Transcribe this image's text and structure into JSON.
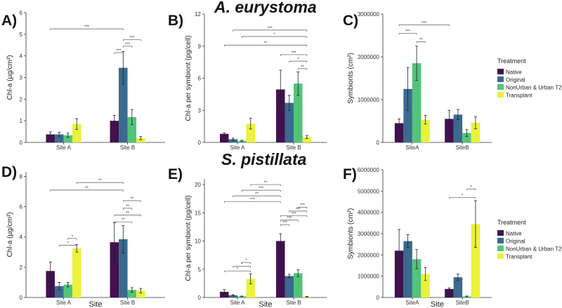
{
  "species_titles": [
    "A. eurystoma",
    "S. pistillata"
  ],
  "legend": {
    "title": "Treatment",
    "entries": [
      {
        "name": "Native",
        "color": "#41114f"
      },
      {
        "name": "Original",
        "color": "#3a6a8e"
      },
      {
        "name": "NonUrban & Urban T2",
        "color": "#52c47a"
      },
      {
        "name": "Transplant",
        "color": "#eaf23a"
      }
    ]
  },
  "chart_data": [
    {
      "id": "A",
      "panel_label": "A)",
      "type": "bar",
      "ylabel": "Chl-a (µg/cm²)",
      "xlabel": "",
      "categories": [
        "Site A",
        "Site B"
      ],
      "ylim": [
        0,
        6
      ],
      "yticks": [
        "0",
        "1",
        "2",
        "3",
        "4",
        "5",
        "6"
      ],
      "ytick_values": [
        0,
        1,
        2,
        3,
        4,
        5,
        6
      ],
      "series": [
        {
          "name": "Native",
          "values": [
            0.37,
            1.0
          ],
          "errors": [
            0.12,
            0.25
          ]
        },
        {
          "name": "Original",
          "values": [
            0.37,
            3.45
          ],
          "errors": [
            0.1,
            0.75
          ]
        },
        {
          "name": "NonUrban & Urban T2",
          "values": [
            0.33,
            1.17
          ],
          "errors": [
            0.1,
            0.35
          ]
        },
        {
          "name": "Transplant",
          "values": [
            0.85,
            0.2
          ],
          "errors": [
            0.25,
            0.07
          ]
        }
      ],
      "significance": [
        {
          "from": [
            0,
            0
          ],
          "to": [
            1,
            1
          ],
          "label": "***",
          "y": 5.25
        },
        {
          "from": [
            1,
            1
          ],
          "to": [
            1,
            3
          ],
          "label": "***",
          "y": 4.75
        },
        {
          "from": [
            1,
            1
          ],
          "to": [
            1,
            2
          ],
          "label": "***",
          "y": 4.45
        },
        {
          "from": [
            1,
            0
          ],
          "to": [
            1,
            1
          ],
          "label": "***",
          "y": 4.15
        }
      ]
    },
    {
      "id": "B",
      "panel_label": "B)",
      "type": "bar",
      "ylabel": "Chl-a per symbiont (pg/cell)",
      "xlabel": "",
      "categories": [
        "Site A",
        "Site B"
      ],
      "ylim": [
        0,
        12
      ],
      "yticks": [
        "0",
        "3",
        "6",
        "9",
        "12"
      ],
      "ytick_values": [
        0,
        3,
        6,
        9,
        12
      ],
      "series": [
        {
          "name": "Native",
          "values": [
            0.8,
            4.95
          ],
          "errors": [
            0.1,
            1.8
          ]
        },
        {
          "name": "Original",
          "values": [
            0.3,
            3.7
          ],
          "errors": [
            0.1,
            0.7
          ]
        },
        {
          "name": "NonUrban & Urban T2",
          "values": [
            0.15,
            5.5
          ],
          "errors": [
            0.05,
            1.1
          ]
        },
        {
          "name": "Transplant",
          "values": [
            1.75,
            0.5
          ],
          "errors": [
            0.5,
            0.15
          ]
        }
      ],
      "significance": [
        {
          "from": [
            0,
            1
          ],
          "to": [
            1,
            3
          ],
          "label": "***",
          "y": 10.5
        },
        {
          "from": [
            0,
            2
          ],
          "to": [
            1,
            3
          ],
          "label": "*",
          "y": 9.9
        },
        {
          "from": [
            0,
            0
          ],
          "to": [
            1,
            3
          ],
          "label": "**",
          "y": 9.1
        },
        {
          "from": [
            1,
            0
          ],
          "to": [
            1,
            3
          ],
          "label": "***",
          "y": 8.2
        },
        {
          "from": [
            1,
            1
          ],
          "to": [
            1,
            3
          ],
          "label": "*",
          "y": 7.6
        },
        {
          "from": [
            1,
            2
          ],
          "to": [
            1,
            3
          ],
          "label": "**",
          "y": 6.9
        }
      ]
    },
    {
      "id": "C",
      "panel_label": "C)",
      "type": "bar",
      "ylabel": "Symbionts (cm²)",
      "xlabel": "",
      "categories": [
        "SiteA",
        "SiteB"
      ],
      "ylim": [
        0,
        3000000
      ],
      "yticks": [
        "0",
        "1000000",
        "2000000",
        "3000000"
      ],
      "ytick_values": [
        0,
        1000000,
        2000000,
        3000000
      ],
      "series": [
        {
          "name": "Native",
          "values": [
            450000,
            550000
          ],
          "errors": [
            100000,
            200000
          ]
        },
        {
          "name": "Original",
          "values": [
            1250000,
            650000
          ],
          "errors": [
            500000,
            120000
          ]
        },
        {
          "name": "NonUrban & Urban T2",
          "values": [
            1850000,
            220000
          ],
          "errors": [
            400000,
            80000
          ]
        },
        {
          "name": "Transplant",
          "values": [
            530000,
            460000
          ],
          "errors": [
            100000,
            140000
          ]
        }
      ],
      "significance": [
        {
          "from": [
            0,
            0
          ],
          "to": [
            1,
            0
          ],
          "label": "***",
          "y": 2750000
        },
        {
          "from": [
            0,
            0
          ],
          "to": [
            0,
            2
          ],
          "label": "***",
          "y": 2550000
        },
        {
          "from": [
            0,
            2
          ],
          "to": [
            0,
            3
          ],
          "label": "**",
          "y": 2350000
        }
      ]
    },
    {
      "id": "D",
      "panel_label": "D)",
      "type": "bar",
      "ylabel": "Chl-a (µg/cm²)",
      "xlabel": "Site",
      "categories": [
        "Site A",
        "Site B"
      ],
      "ylim": [
        0,
        8.3
      ],
      "yticks": [
        "0",
        "2",
        "4",
        "6",
        "8"
      ],
      "ytick_values": [
        0,
        2,
        4,
        6,
        8
      ],
      "series": [
        {
          "name": "Native",
          "values": [
            1.75,
            3.65
          ],
          "errors": [
            0.6,
            1.3
          ]
        },
        {
          "name": "Original",
          "values": [
            0.75,
            3.85
          ],
          "errors": [
            0.25,
            0.9
          ]
        },
        {
          "name": "NonUrban & Urban T2",
          "values": [
            0.85,
            0.5
          ],
          "errors": [
            0.15,
            0.15
          ]
        },
        {
          "name": "Transplant",
          "values": [
            3.25,
            0.45
          ],
          "errors": [
            0.25,
            0.15
          ]
        }
      ],
      "significance": [
        {
          "from": [
            0,
            3
          ],
          "to": [
            1,
            1
          ],
          "label": "**",
          "y": 7.6
        },
        {
          "from": [
            0,
            0
          ],
          "to": [
            1,
            1
          ],
          "label": "**",
          "y": 7.1
        },
        {
          "from": [
            1,
            1
          ],
          "to": [
            1,
            3
          ],
          "label": "**",
          "y": 6.4
        },
        {
          "from": [
            1,
            1
          ],
          "to": [
            1,
            2
          ],
          "label": "**",
          "y": 5.9
        },
        {
          "from": [
            1,
            0
          ],
          "to": [
            1,
            3
          ],
          "label": "**",
          "y": 5.45
        },
        {
          "from": [
            1,
            0
          ],
          "to": [
            1,
            2
          ],
          "label": "**",
          "y": 5.0
        },
        {
          "from": [
            0,
            2
          ],
          "to": [
            0,
            3
          ],
          "label": "*",
          "y": 3.9
        },
        {
          "from": [
            0,
            1
          ],
          "to": [
            0,
            3
          ],
          "label": "*",
          "y": 3.45
        }
      ]
    },
    {
      "id": "E",
      "panel_label": "E)",
      "type": "bar",
      "ylabel": "Chl-a per symbiont (pg/cell)",
      "xlabel": "Site",
      "categories": [
        "Site A",
        "Site B"
      ],
      "ylim": [
        0,
        21
      ],
      "yticks": [
        "0",
        "5",
        "10",
        "15",
        "20"
      ],
      "ytick_values": [
        0,
        5,
        10,
        15,
        20
      ],
      "series": [
        {
          "name": "Native",
          "values": [
            1.0,
            10.0
          ],
          "errors": [
            0.4,
            1.3
          ]
        },
        {
          "name": "Original",
          "values": [
            0.4,
            3.8
          ],
          "errors": [
            0.1,
            0.3
          ]
        },
        {
          "name": "NonUrban & Urban T2",
          "values": [
            0.2,
            4.3
          ],
          "errors": [
            0.05,
            0.6
          ]
        },
        {
          "name": "Transplant",
          "values": [
            3.3,
            0.15
          ],
          "errors": [
            0.9,
            0.05
          ]
        }
      ],
      "significance": [
        {
          "from": [
            0,
            3
          ],
          "to": [
            1,
            0
          ],
          "label": "**",
          "y": 20.0
        },
        {
          "from": [
            0,
            2
          ],
          "to": [
            1,
            0
          ],
          "label": "***",
          "y": 19.0
        },
        {
          "from": [
            0,
            1
          ],
          "to": [
            1,
            0
          ],
          "label": "**",
          "y": 18.0
        },
        {
          "from": [
            0,
            0
          ],
          "to": [
            1,
            0
          ],
          "label": "***",
          "y": 17.0
        },
        {
          "from": [
            1,
            2
          ],
          "to": [
            1,
            3
          ],
          "label": "***",
          "y": 16.0
        },
        {
          "from": [
            1,
            1
          ],
          "to": [
            1,
            3
          ],
          "label": "***",
          "y": 15.3
        },
        {
          "from": [
            1,
            0
          ],
          "to": [
            1,
            3
          ],
          "label": "***",
          "y": 14.5
        },
        {
          "from": [
            1,
            0
          ],
          "to": [
            1,
            2
          ],
          "label": "***",
          "y": 13.7
        },
        {
          "from": [
            1,
            0
          ],
          "to": [
            1,
            1
          ],
          "label": "***",
          "y": 12.9
        },
        {
          "from": [
            0,
            2
          ],
          "to": [
            0,
            3
          ],
          "label": "*",
          "y": 6.2
        },
        {
          "from": [
            0,
            1
          ],
          "to": [
            0,
            3
          ],
          "label": "*",
          "y": 5.5
        },
        {
          "from": [
            0,
            0
          ],
          "to": [
            0,
            3
          ],
          "label": "*",
          "y": 4.7
        }
      ]
    },
    {
      "id": "F",
      "panel_label": "F)",
      "type": "bar",
      "ylabel": "Symbionts (cm²)",
      "xlabel": "Site",
      "categories": [
        "SiteA",
        "SiteB"
      ],
      "ylim": [
        0,
        6000000
      ],
      "yticks": [
        "0",
        "1000000",
        "2000000",
        "3000000",
        "4000000",
        "5000000",
        "6000000"
      ],
      "ytick_values": [
        0,
        1000000,
        2000000,
        3000000,
        4000000,
        5000000,
        6000000
      ],
      "series": [
        {
          "name": "Native",
          "values": [
            2200000,
            400000
          ],
          "errors": [
            1000000,
            50000
          ]
        },
        {
          "name": "Original",
          "values": [
            2650000,
            950000
          ],
          "errors": [
            300000,
            150000
          ]
        },
        {
          "name": "NonUrban & Urban T2",
          "values": [
            1800000,
            50000
          ],
          "errors": [
            450000,
            20000
          ]
        },
        {
          "name": "Transplant",
          "values": [
            1100000,
            3450000
          ],
          "errors": [
            300000,
            1100000
          ]
        }
      ],
      "significance": [
        {
          "from": [
            1,
            0
          ],
          "to": [
            1,
            3
          ],
          "label": "*",
          "y": 4700000
        },
        {
          "from": [
            1,
            2
          ],
          "to": [
            1,
            3
          ],
          "label": "*",
          "y": 5100000
        }
      ]
    }
  ]
}
